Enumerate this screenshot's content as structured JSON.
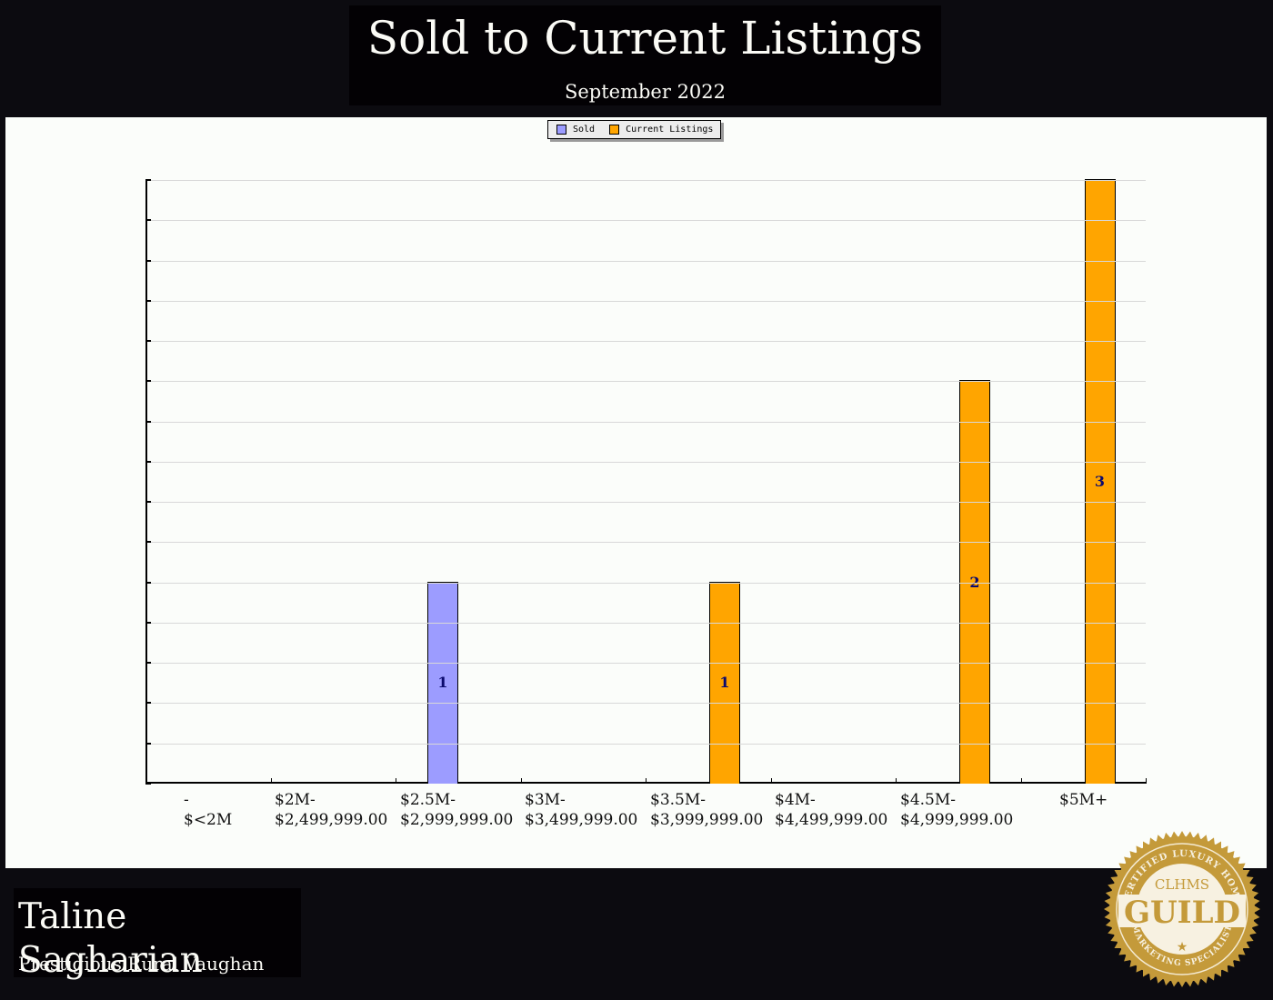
{
  "header": {
    "title": "Sold to Current Listings",
    "subtitle": "September 2022"
  },
  "legend": {
    "items": [
      {
        "label": "Sold",
        "color": "#9c9cff"
      },
      {
        "label": "Current Listings",
        "color": "#ffa500"
      }
    ]
  },
  "footer": {
    "agent_name": "Taline Sagharian",
    "area": "Prestigious Rural Vaughan",
    "badge": {
      "top_text": "CERTIFIED LUXURY HOME",
      "org": "CLHMS",
      "main": "GUILD",
      "bottom_text": "MARKETING SPECIALIST",
      "color": "#c49a3a"
    }
  },
  "x_labels": [
    {
      "line1": "-",
      "line2": "$<2M"
    },
    {
      "line1": "$2M-",
      "line2": "$2,499,999.00"
    },
    {
      "line1": "$2.5M-",
      "line2": "$2,999,999.00"
    },
    {
      "line1": "$3M-",
      "line2": "$3,499,999.00"
    },
    {
      "line1": "$3.5M-",
      "line2": "$3,999,999.00"
    },
    {
      "line1": "$4M-",
      "line2": "$4,499,999.00"
    },
    {
      "line1": "$4.5M-",
      "line2": "$4,999,999.00"
    },
    {
      "line1": "$5M+",
      "line2": ""
    }
  ],
  "bar_labels": {
    "sold_2_5M": "1",
    "listings_3_5M": "1",
    "listings_4_5M": "2",
    "listings_5M": "3"
  },
  "chart_data": {
    "type": "bar",
    "title": "Sold to Current Listings",
    "subtitle": "September 2022",
    "xlabel": "",
    "ylabel": "",
    "categories": [
      "$<2M",
      "$2M-$2,499,999.00",
      "$2.5M-$2,999,999.00",
      "$3M-$3,499,999.00",
      "$3.5M-$3,999,999.00",
      "$4M-$4,499,999.00",
      "$4.5M-$4,999,999.00",
      "$5M+"
    ],
    "series": [
      {
        "name": "Sold",
        "color": "#9c9cff",
        "values": [
          0,
          0,
          1,
          0,
          0,
          0,
          0,
          0
        ]
      },
      {
        "name": "Current Listings",
        "color": "#ffa500",
        "values": [
          0,
          0,
          0,
          0,
          1,
          0,
          2,
          3
        ]
      }
    ],
    "ylim": [
      0,
      3
    ],
    "y_tick_labels_shown": false,
    "grid": true,
    "grid_step": 0.2,
    "legend_position": "top-center",
    "data_labels": true
  }
}
